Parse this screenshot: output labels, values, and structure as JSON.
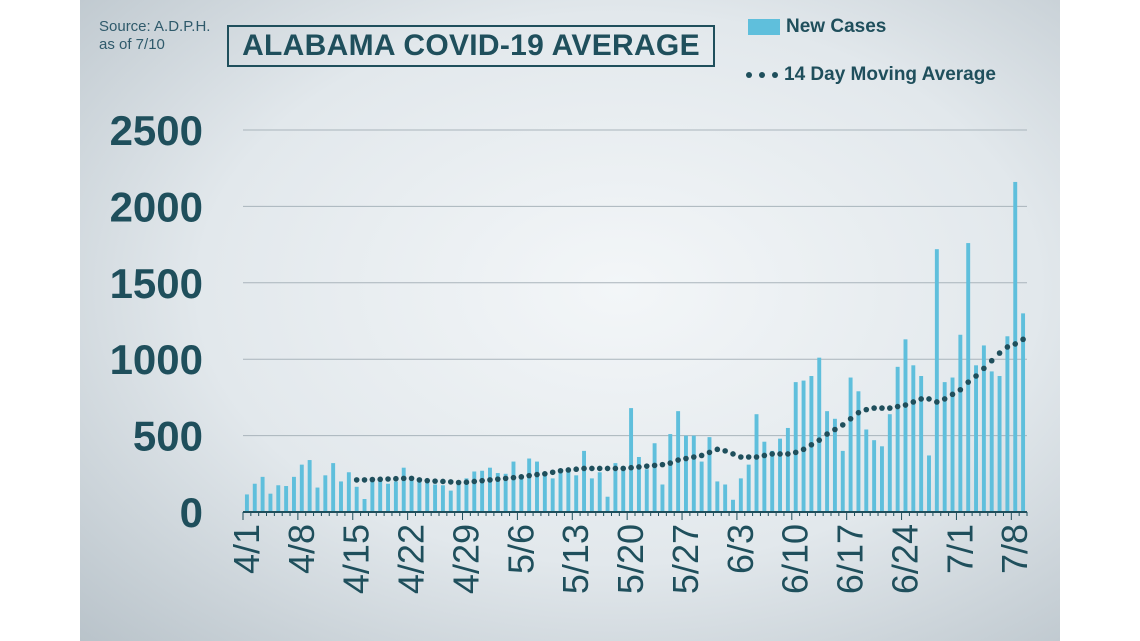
{
  "source_line1": "Source: A.D.P.H.",
  "source_line2": "as of 7/10",
  "chart_data": {
    "type": "bar",
    "title": "ALABAMA COVID-19 AVERAGE",
    "ylim": [
      0,
      2500
    ],
    "yticks": [
      0,
      500,
      1000,
      1500,
      2000,
      2500
    ],
    "x_tick_labels": [
      "4/1",
      "4/8",
      "4/15",
      "4/22",
      "4/29",
      "5/6",
      "5/13",
      "5/20",
      "5/27",
      "6/3",
      "6/10",
      "6/17",
      "6/24",
      "7/1",
      "7/8"
    ],
    "grid": true,
    "legend_position": "top-right",
    "colors": {
      "bars": "#5fbfdc",
      "average": "#1f4f5c",
      "text": "#1f4f5c"
    },
    "series": [
      {
        "name": "New Cases",
        "type": "bar",
        "values": [
          115,
          185,
          230,
          120,
          175,
          170,
          230,
          310,
          340,
          160,
          240,
          320,
          200,
          260,
          165,
          85,
          200,
          215,
          185,
          200,
          290,
          215,
          200,
          200,
          180,
          175,
          140,
          180,
          220,
          265,
          270,
          290,
          255,
          250,
          330,
          240,
          350,
          330,
          240,
          220,
          270,
          280,
          240,
          400,
          220,
          260,
          100,
          320,
          300,
          680,
          360,
          280,
          450,
          180,
          510,
          660,
          500,
          500,
          330,
          490,
          200,
          180,
          80,
          220,
          310,
          640,
          460,
          400,
          480,
          550,
          850,
          860,
          890,
          1010,
          660,
          610,
          400,
          880,
          790,
          540,
          470,
          430,
          640,
          950,
          1130,
          960,
          890,
          370,
          1720,
          850,
          880,
          1160,
          1760,
          960,
          1090,
          920,
          890,
          1150,
          2160,
          1300
        ]
      },
      {
        "name": "14 Day Moving Average",
        "type": "line",
        "style": "dotted",
        "values": [
          null,
          null,
          null,
          null,
          null,
          null,
          null,
          null,
          null,
          null,
          null,
          null,
          null,
          null,
          210,
          210,
          212,
          214,
          216,
          218,
          220,
          220,
          210,
          205,
          202,
          200,
          197,
          193,
          195,
          200,
          205,
          210,
          215,
          220,
          225,
          230,
          238,
          245,
          250,
          260,
          270,
          275,
          280,
          285,
          285,
          285,
          285,
          285,
          285,
          290,
          295,
          300,
          305,
          310,
          320,
          340,
          350,
          360,
          370,
          390,
          410,
          400,
          380,
          360,
          360,
          360,
          370,
          380,
          380,
          380,
          390,
          410,
          440,
          470,
          510,
          540,
          570,
          610,
          650,
          670,
          680,
          680,
          680,
          690,
          700,
          720,
          740,
          740,
          720,
          740,
          770,
          800,
          850,
          890,
          940,
          990,
          1040,
          1080,
          1100,
          1130
        ]
      }
    ]
  }
}
